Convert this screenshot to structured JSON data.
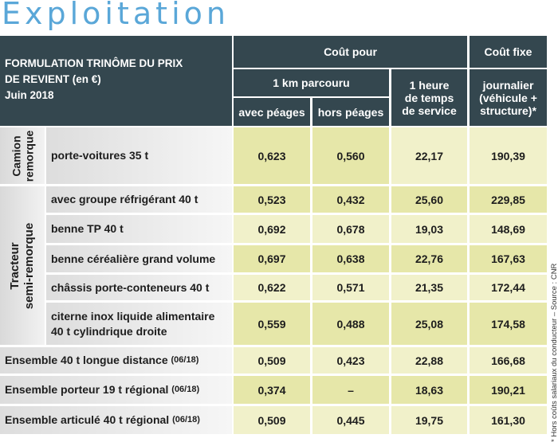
{
  "title": "Exploitation",
  "header": {
    "formulation": [
      "FORMULATION TRINÔME DU PRIX",
      "DE REVIENT (en €)",
      "Juin 2018"
    ],
    "cout_pour": "Coût pour",
    "cout_fixe": "Coût fixe",
    "km": "1 km parcouru",
    "heure": [
      "1 heure",
      "de temps",
      "de service"
    ],
    "journalier": [
      "journalier",
      "(véhicule +",
      "structure)*"
    ],
    "avec_peages": "avec péages",
    "hors_peages": "hors péages"
  },
  "groups": {
    "camion": [
      "Camion",
      "remorque"
    ],
    "tracteur": [
      "Tracteur",
      "semi-remorque"
    ]
  },
  "rows": [
    {
      "label": "porte-voitures 35 t",
      "suffix": "",
      "avec": "0,623",
      "hors": "0,560",
      "heure": "22,17",
      "jour": "190,39"
    },
    {
      "label": "avec groupe réfrigérant 40 t",
      "suffix": "",
      "avec": "0,523",
      "hors": "0,432",
      "heure": "25,60",
      "jour": "229,85"
    },
    {
      "label": "benne TP 40 t",
      "suffix": "",
      "avec": "0,692",
      "hors": "0,678",
      "heure": "19,03",
      "jour": "148,69"
    },
    {
      "label": "benne céréalière grand volume",
      "suffix": "",
      "avec": "0,697",
      "hors": "0,638",
      "heure": "22,76",
      "jour": "167,63"
    },
    {
      "label": "châssis porte-conteneurs 40 t",
      "suffix": "",
      "avec": "0,622",
      "hors": "0,571",
      "heure": "21,35",
      "jour": "172,44"
    },
    {
      "label": "citerne inox liquide alimentaire",
      "label2": "40 t cylindrique droite",
      "suffix": "",
      "avec": "0,559",
      "hors": "0,488",
      "heure": "25,08",
      "jour": "174,58"
    },
    {
      "label": "Ensemble 40 t longue distance",
      "suffix": "(06/18)",
      "avec": "0,509",
      "hors": "0,423",
      "heure": "22,88",
      "jour": "166,68"
    },
    {
      "label": "Ensemble porteur 19 t régional",
      "suffix": "(06/18)",
      "avec": "0,374",
      "hors": "–",
      "heure": "18,63",
      "jour": "190,21"
    },
    {
      "label": "Ensemble articulé 40 t régional",
      "suffix": "(06/18)",
      "avec": "0,509",
      "hors": "0,445",
      "heure": "19,75",
      "jour": "161,30"
    }
  ],
  "footnote": "* Hors coûts salariaux du conducteur  –  Source : CNR"
}
